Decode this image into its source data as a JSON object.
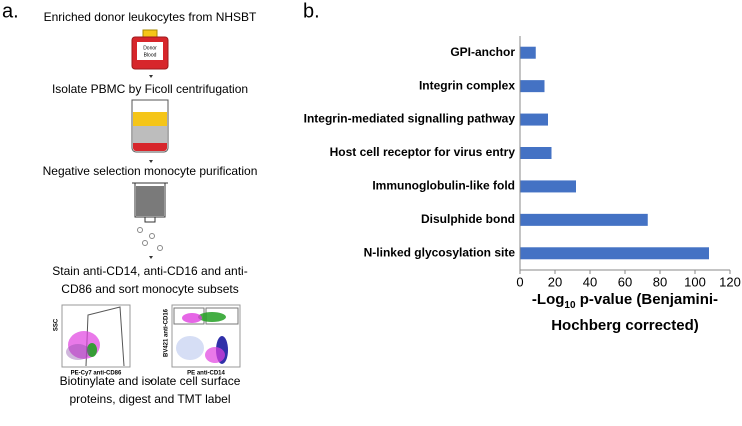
{
  "panels": [
    "a.",
    "b."
  ],
  "steps": [
    [
      "Enriched donor leukocytes from NHSBT"
    ],
    [
      "Isolate PBMC by Ficoll centrifugation"
    ],
    [
      "Negative selection monocyte purification"
    ],
    [
      "Stain anti-CD14, anti-CD16 and anti-",
      "CD86 and sort monocyte subsets"
    ],
    [
      "Biotinylate and isolate cell surface",
      "proteins, digest and TMT label"
    ]
  ],
  "blood_bag_label": [
    "Donor",
    "Blood"
  ],
  "flow_plots": [
    {
      "y_label": "SSC",
      "x_label": "PE-Cy7 anti-CD86"
    },
    {
      "y_label": "BV421 anti-CD16",
      "x_label": "PE anti-CD14"
    }
  ],
  "chart_data": {
    "type": "hbar",
    "categories": [
      "GPI-anchor",
      "Integrin complex",
      "Integrin-mediated signalling pathway",
      "Host cell receptor for virus entry",
      "Immunoglobulin-like fold",
      "Disulphide bond",
      "N-linked glycosylation site"
    ],
    "values": [
      9,
      14,
      16,
      18,
      32,
      73,
      108
    ],
    "color": "#4472c4",
    "xlim": [
      0,
      120
    ],
    "xticks": [
      0,
      20,
      40,
      60,
      80,
      100,
      120
    ],
    "x_label_lines": [
      [
        "-Log",
        "10",
        " p-value (Benjamini-"
      ],
      [
        "Hochberg corrected)"
      ]
    ]
  }
}
